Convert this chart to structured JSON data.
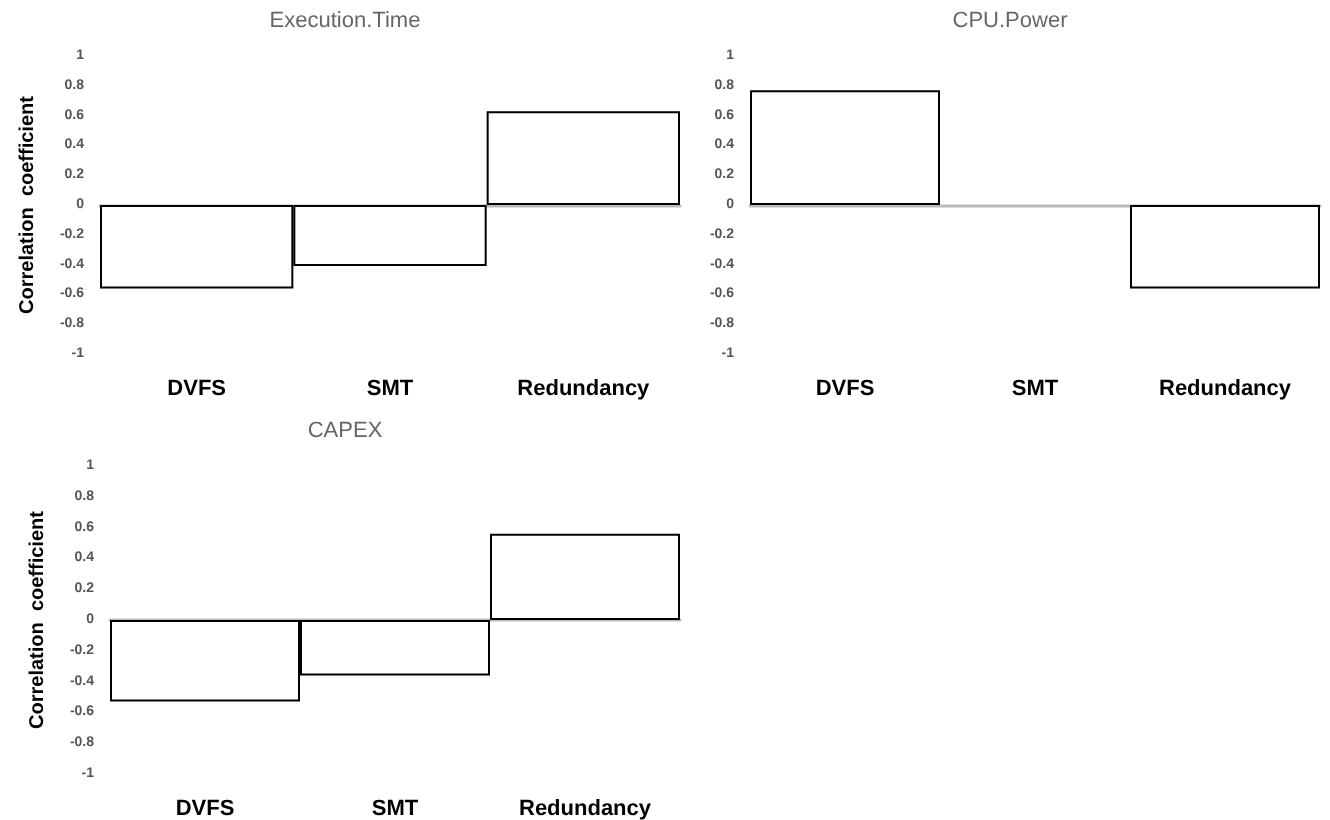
{
  "chart_data": [
    {
      "type": "bar",
      "title": "Execution.Time",
      "ylabel": "Correlation  coefficient",
      "categories": [
        "DVFS",
        "SMT",
        "Redundancy"
      ],
      "values": [
        -0.56,
        -0.41,
        0.63
      ],
      "color": "#ffffff",
      "ylim": [
        -1,
        1
      ],
      "yticks": [
        -1,
        -0.8,
        -0.6,
        -0.4,
        -0.2,
        0,
        0.2,
        0.4,
        0.6,
        0.8,
        1
      ]
    },
    {
      "type": "bar",
      "title": "CPU.Power",
      "categories": [
        "DVFS",
        "SMT",
        "Redundancy"
      ],
      "values": [
        0.77,
        0,
        -0.56
      ],
      "color": "#ffffff",
      "ylim": [
        -1,
        1
      ],
      "yticks": [
        -1,
        -0.8,
        -0.6,
        -0.4,
        -0.2,
        0,
        0.2,
        0.4,
        0.6,
        0.8,
        1
      ]
    },
    {
      "type": "bar",
      "title": "CAPEX",
      "ylabel": "Correlation  coefficient",
      "categories": [
        "DVFS",
        "SMT",
        "Redundancy"
      ],
      "values": [
        -0.53,
        -0.36,
        0.56
      ],
      "color": "#ffffff",
      "ylim": [
        -1,
        1
      ],
      "yticks": [
        -1,
        -0.8,
        -0.6,
        -0.4,
        -0.2,
        0,
        0.2,
        0.4,
        0.6,
        0.8,
        1
      ]
    }
  ]
}
